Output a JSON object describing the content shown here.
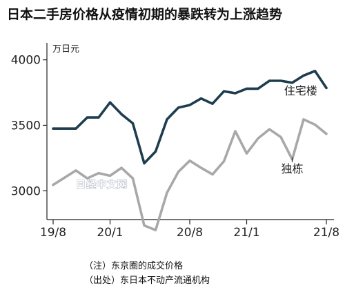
{
  "title": "日本二手房价格从疫情初期的暴跌转为上涨趋势",
  "chart_data": {
    "type": "line",
    "title": "日本二手房价格从疫情初期的暴跌转为上涨趋势",
    "unit": "万日元",
    "y_ticks": [
      "4000",
      "3500",
      "3000"
    ],
    "ylim": [
      2780,
      4130
    ],
    "grid": false,
    "x_ticks": [
      {
        "label": "19/8",
        "index": 0
      },
      {
        "label": "20/1",
        "index": 5
      },
      {
        "label": "20/8",
        "index": 12
      },
      {
        "label": "21/1",
        "index": 17
      },
      {
        "label": "21/8",
        "index": 24
      }
    ],
    "x": [
      "19/8",
      "19/9",
      "19/10",
      "19/11",
      "19/12",
      "20/1",
      "20/2",
      "20/3",
      "20/4",
      "20/5",
      "20/6",
      "20/7",
      "20/8",
      "20/9",
      "20/10",
      "20/11",
      "20/12",
      "21/1",
      "21/2",
      "21/3",
      "21/4",
      "21/5",
      "21/6",
      "21/7",
      "21/8"
    ],
    "series": [
      {
        "name": "住宅楼",
        "color": "#1e3d4f",
        "values": [
          3475,
          3475,
          3475,
          3560,
          3560,
          3675,
          3585,
          3515,
          3210,
          3300,
          3545,
          3635,
          3655,
          3705,
          3665,
          3760,
          3745,
          3780,
          3780,
          3840,
          3840,
          3825,
          3880,
          3915,
          3785
        ]
      },
      {
        "name": "独栋",
        "color": "#a8a8a8",
        "values": [
          3045,
          3100,
          3155,
          3095,
          3135,
          3115,
          3175,
          3095,
          2735,
          2700,
          2985,
          3145,
          3230,
          3175,
          3125,
          3225,
          3455,
          3285,
          3400,
          3470,
          3410,
          3240,
          3545,
          3505,
          3435
        ]
      }
    ]
  },
  "watermark": "日经中文网",
  "notes": [
    "（注）东京圈的成交价格",
    "（出处）东日本不动产流通机构"
  ]
}
